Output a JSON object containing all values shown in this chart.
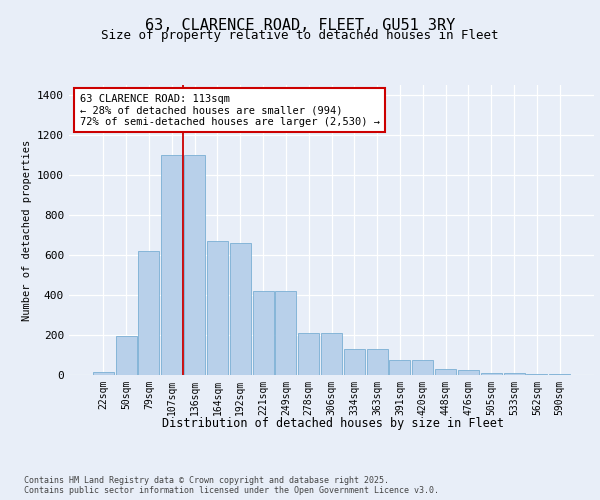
{
  "title1": "63, CLARENCE ROAD, FLEET, GU51 3RY",
  "title2": "Size of property relative to detached houses in Fleet",
  "xlabel": "Distribution of detached houses by size in Fleet",
  "ylabel": "Number of detached properties",
  "categories": [
    "22sqm",
    "50sqm",
    "79sqm",
    "107sqm",
    "136sqm",
    "164sqm",
    "192sqm",
    "221sqm",
    "249sqm",
    "278sqm",
    "306sqm",
    "334sqm",
    "363sqm",
    "391sqm",
    "420sqm",
    "448sqm",
    "476sqm",
    "505sqm",
    "533sqm",
    "562sqm",
    "590sqm"
  ],
  "values": [
    15,
    195,
    620,
    1100,
    1100,
    670,
    660,
    420,
    420,
    210,
    210,
    130,
    130,
    75,
    75,
    30,
    25,
    10,
    10,
    5,
    3
  ],
  "bar_color": "#b8d0ea",
  "bar_edge_color": "#7aafd4",
  "vline_index": 3.5,
  "vline_color": "#cc0000",
  "annotation_text": "63 CLARENCE ROAD: 113sqm\n← 28% of detached houses are smaller (994)\n72% of semi-detached houses are larger (2,530) →",
  "annotation_box_color": "#cc0000",
  "bg_color": "#e8eef8",
  "plot_bg_color": "#e8eef8",
  "ylim": [
    0,
    1450
  ],
  "yticks": [
    0,
    200,
    400,
    600,
    800,
    1000,
    1200,
    1400
  ],
  "footer_text": "Contains HM Land Registry data © Crown copyright and database right 2025.\nContains public sector information licensed under the Open Government Licence v3.0.",
  "title_fontsize": 11,
  "subtitle_fontsize": 9,
  "tick_fontsize": 7,
  "ylabel_fontsize": 7.5,
  "xlabel_fontsize": 8.5,
  "annotation_fontsize": 7.5,
  "footer_fontsize": 6
}
